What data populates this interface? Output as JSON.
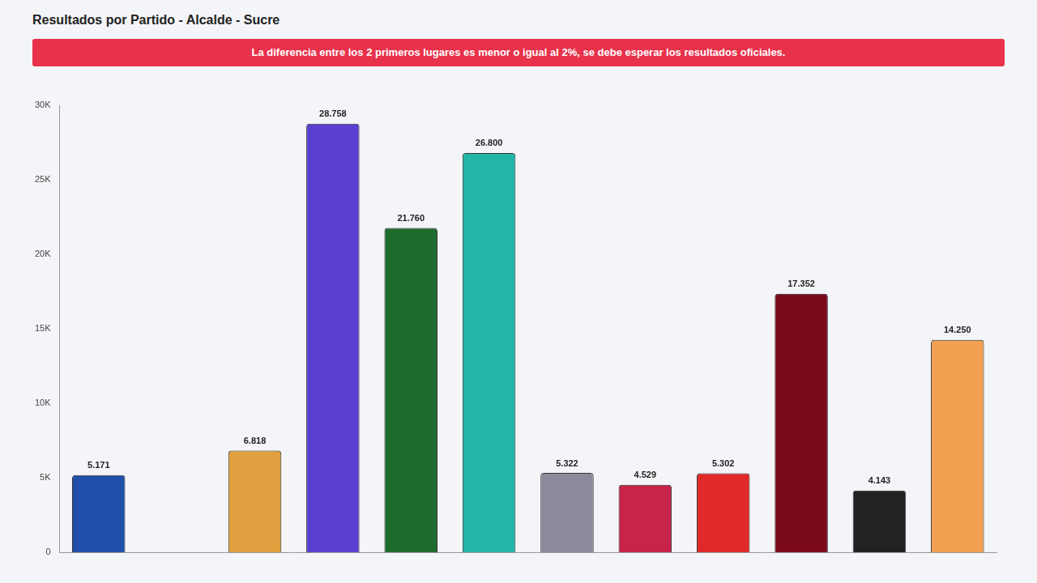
{
  "chart_data": {
    "type": "bar",
    "title": "Resultados por Partido - Alcalde - Sucre",
    "subtitle": "La diferencia entre los 2 primeros lugares es menor o igual al 2%, se debe esperar los resultados oficiales.",
    "categories": [
      null,
      null,
      null,
      null,
      null,
      null,
      null,
      null,
      null,
      null,
      null,
      null
    ],
    "values": [
      5171,
      0,
      6818,
      28758,
      21760,
      26800,
      5322,
      4529,
      5302,
      17352,
      4143,
      14250
    ],
    "value_labels": [
      "5.171",
      null,
      "6.818",
      "28.758",
      "21.760",
      "26.800",
      "5.322",
      "4.529",
      "5.302",
      "17.352",
      "4.143",
      "14.250"
    ],
    "colors": [
      "#1f4fa8",
      "#8a8a8a",
      "#e0a040",
      "#5a3fd0",
      "#1e6b2e",
      "#23b5a8",
      "#8a8a9a",
      "#c8234a",
      "#e02a2a",
      "#7a0a1a",
      "#222222",
      "#f0a050"
    ],
    "ylim": [
      0,
      30000
    ],
    "yticks": [
      0,
      {
        "value": 5000,
        "label": "5K"
      },
      {
        "value": 10000,
        "label": "10K"
      },
      {
        "value": 15000,
        "label": "15K"
      },
      {
        "value": 20000,
        "label": "20K"
      },
      {
        "value": 25000,
        "label": "25K"
      },
      {
        "value": 30000,
        "label": "30K"
      }
    ],
    "grid": false,
    "data_labels": true,
    "tick_labels": "y"
  }
}
